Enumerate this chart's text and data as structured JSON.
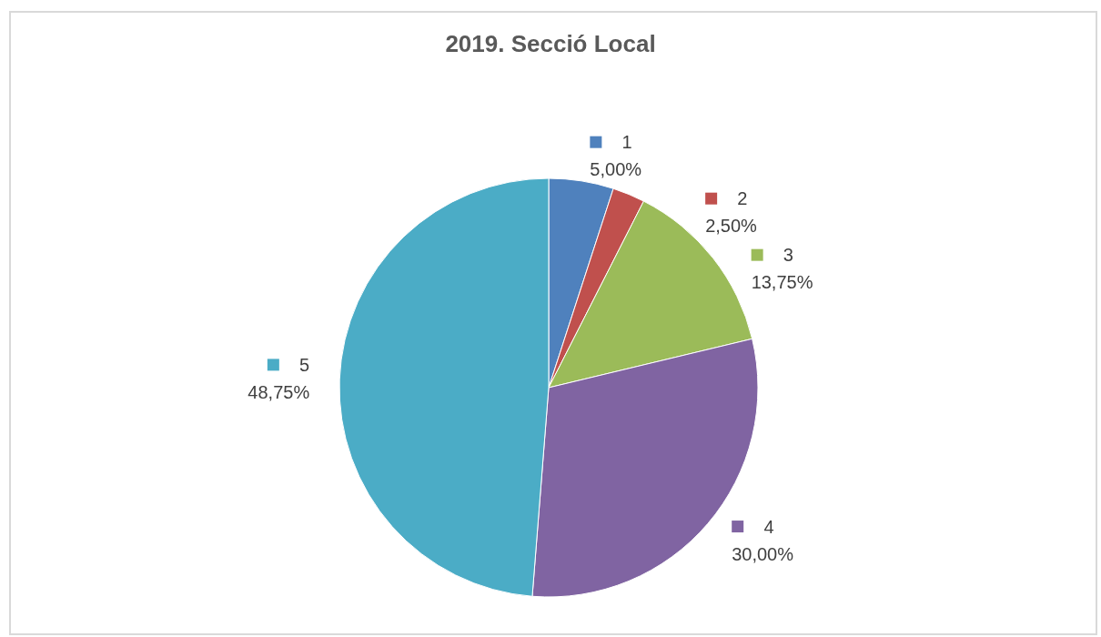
{
  "chart_data": {
    "type": "pie",
    "title": "2019. Secció Local",
    "categories": [
      "1",
      "2",
      "3",
      "4",
      "5"
    ],
    "values": [
      5,
      2.5,
      13.75,
      30,
      48.75
    ],
    "value_labels": [
      "5,00%",
      "2,50%",
      "13,75%",
      "30,00%",
      "48,75%"
    ],
    "colors": [
      "#4f81bd",
      "#c0504d",
      "#9bbb59",
      "#8064a2",
      "#4bacc6"
    ],
    "legend": true
  }
}
